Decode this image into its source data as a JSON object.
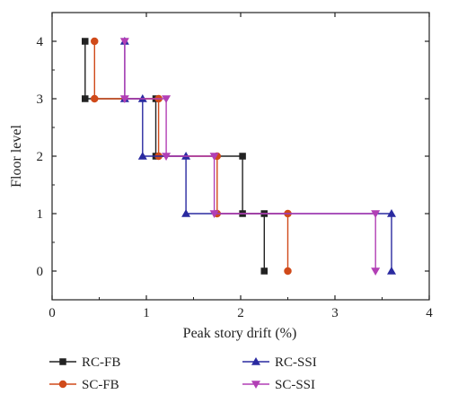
{
  "chart_data": {
    "type": "line",
    "xlabel": "Peak story drift (%)",
    "ylabel": "Floor level",
    "xlim": [
      0,
      4
    ],
    "ylim": [
      -0.5,
      4.5
    ],
    "xticks": [
      0,
      1,
      2,
      3,
      4
    ],
    "yticks": [
      0,
      1,
      2,
      3,
      4
    ],
    "x_tick_labels": [
      "0",
      "1",
      "2",
      "3",
      "4"
    ],
    "y_tick_labels": [
      "0",
      "1",
      "2",
      "3",
      "4"
    ],
    "grid": false,
    "legend_position": "bottom",
    "step_style": "vertical-then-horizontal steps between floors",
    "series": [
      {
        "name": "RC-FB",
        "color": "#222222",
        "marker": "square",
        "points": [
          {
            "x": 2.25,
            "y": 0
          },
          {
            "x": 2.25,
            "y": 1
          },
          {
            "x": 2.02,
            "y": 1
          },
          {
            "x": 2.02,
            "y": 2
          },
          {
            "x": 1.1,
            "y": 2
          },
          {
            "x": 1.1,
            "y": 3
          },
          {
            "x": 0.35,
            "y": 3
          },
          {
            "x": 0.35,
            "y": 4
          }
        ]
      },
      {
        "name": "SC-FB",
        "color": "#d04a1a",
        "marker": "circle",
        "points": [
          {
            "x": 2.5,
            "y": 0
          },
          {
            "x": 2.5,
            "y": 1
          },
          {
            "x": 1.75,
            "y": 1
          },
          {
            "x": 1.75,
            "y": 2
          },
          {
            "x": 1.13,
            "y": 2
          },
          {
            "x": 1.13,
            "y": 3
          },
          {
            "x": 0.45,
            "y": 3
          },
          {
            "x": 0.45,
            "y": 4
          }
        ]
      },
      {
        "name": "RC-SSI",
        "color": "#2a2aa0",
        "marker": "triangle-up",
        "points": [
          {
            "x": 3.6,
            "y": 0
          },
          {
            "x": 3.6,
            "y": 1
          },
          {
            "x": 1.42,
            "y": 1
          },
          {
            "x": 1.42,
            "y": 2
          },
          {
            "x": 0.96,
            "y": 2
          },
          {
            "x": 0.96,
            "y": 3
          },
          {
            "x": 0.77,
            "y": 3
          },
          {
            "x": 0.77,
            "y": 4
          }
        ]
      },
      {
        "name": "SC-SSI",
        "color": "#b23fb5",
        "marker": "triangle-down",
        "points": [
          {
            "x": 3.43,
            "y": 0
          },
          {
            "x": 3.43,
            "y": 1
          },
          {
            "x": 1.72,
            "y": 1
          },
          {
            "x": 1.72,
            "y": 2
          },
          {
            "x": 1.21,
            "y": 2
          },
          {
            "x": 1.21,
            "y": 3
          },
          {
            "x": 0.77,
            "y": 3
          },
          {
            "x": 0.77,
            "y": 4
          }
        ]
      }
    ]
  }
}
